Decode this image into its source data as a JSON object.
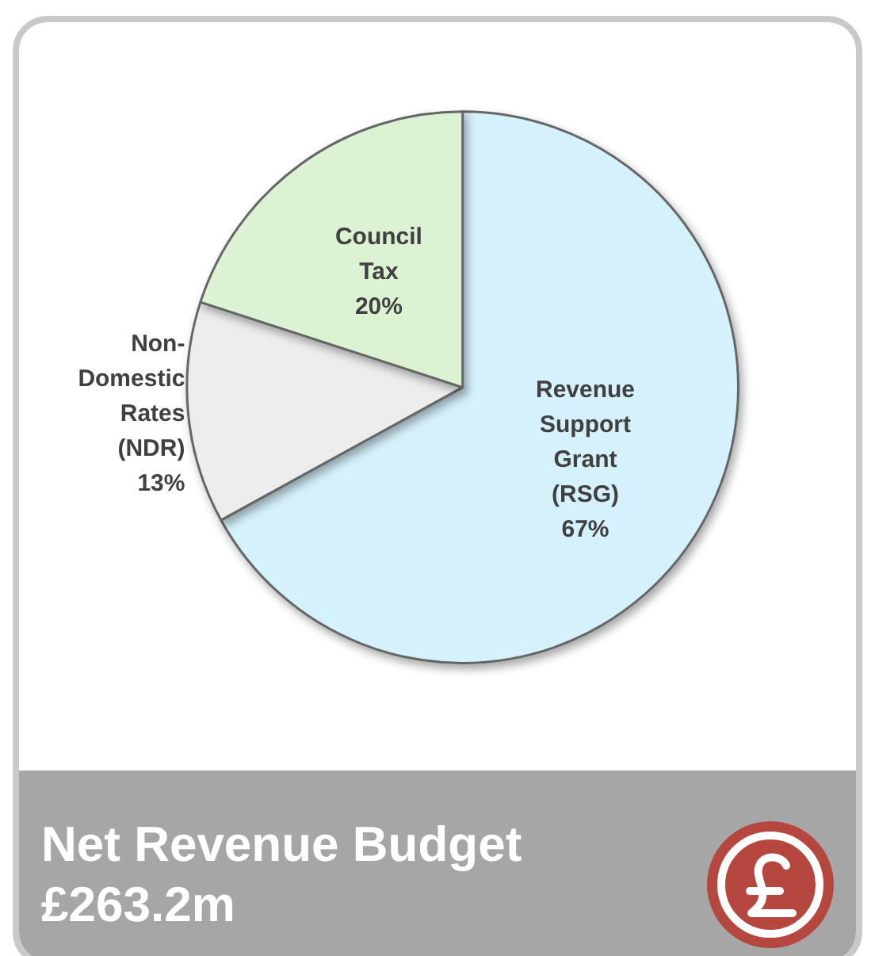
{
  "chart_data": {
    "type": "pie",
    "title": "Net Revenue Budget £263.2m",
    "categories": [
      "Revenue Support Grant (RSG)",
      "Non-Domestic Rates (NDR)",
      "Council Tax"
    ],
    "values": [
      67,
      13,
      20
    ],
    "value_labels": [
      "67%",
      "13%",
      "20%"
    ],
    "colors": [
      "#d5f1fb",
      "#ededed",
      "#dbf3d2"
    ],
    "legend": false
  }
}
